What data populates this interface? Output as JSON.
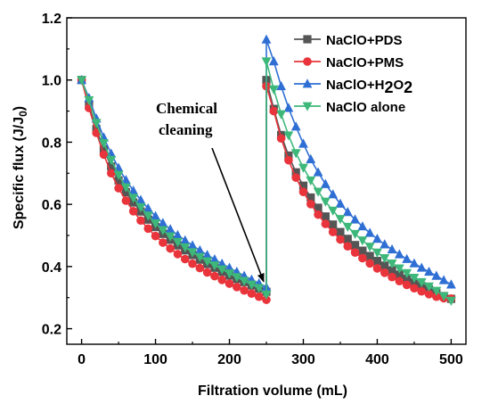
{
  "chart_data": {
    "type": "line",
    "title": "",
    "xlabel": "Filtration volume (mL)",
    "ylabel": "Specific flux (J/J",
    "ylabel_sub": "0",
    "ylabel_close": ")",
    "xlim": [
      -20,
      520
    ],
    "ylim": [
      0.15,
      1.2
    ],
    "xticks": [
      0,
      100,
      200,
      300,
      400,
      500
    ],
    "xtick_labels": [
      "0",
      "100",
      "200",
      "300",
      "400",
      "500"
    ],
    "yticks": [
      0.2,
      0.4,
      0.6,
      0.8,
      1.0,
      1.2
    ],
    "ytick_labels": [
      "0.2",
      "0.4",
      "0.6",
      "0.8",
      "1.0",
      "1.2"
    ],
    "legend_position": "top-right",
    "grid": false,
    "annotation": {
      "lines": [
        "Chemical",
        "cleaning"
      ],
      "points_to": [
        250,
        0.34
      ]
    },
    "x": [
      0,
      10,
      20,
      30,
      40,
      50,
      60,
      70,
      80,
      90,
      100,
      110,
      120,
      130,
      140,
      150,
      160,
      170,
      180,
      190,
      200,
      210,
      220,
      230,
      240,
      250,
      250,
      260,
      270,
      280,
      290,
      300,
      310,
      320,
      330,
      340,
      350,
      360,
      370,
      380,
      390,
      400,
      410,
      420,
      430,
      440,
      450,
      460,
      470,
      480,
      490,
      500
    ],
    "series": [
      {
        "name": "NaClO+PDS",
        "name_parts": [
          {
            "t": "NaClO+PDS"
          }
        ],
        "color": "#555555",
        "marker": "square",
        "values": [
          1.0,
          0.918,
          0.842,
          0.777,
          0.722,
          0.677,
          0.639,
          0.606,
          0.577,
          0.551,
          0.527,
          0.505,
          0.486,
          0.468,
          0.452,
          0.437,
          0.422,
          0.408,
          0.396,
          0.383,
          0.371,
          0.36,
          0.35,
          0.339,
          0.329,
          0.319,
          1.0,
          0.907,
          0.823,
          0.757,
          0.703,
          0.66,
          0.622,
          0.589,
          0.561,
          0.535,
          0.511,
          0.489,
          0.469,
          0.451,
          0.434,
          0.418,
          0.403,
          0.388,
          0.374,
          0.361,
          0.349,
          0.337,
          0.326,
          0.315,
          0.305,
          0.296
        ]
      },
      {
        "name": "NaClO+PMS",
        "name_parts": [
          {
            "t": "NaClO+PMS"
          }
        ],
        "color": "#e8343a",
        "marker": "circle",
        "values": [
          1.0,
          0.91,
          0.83,
          0.76,
          0.7,
          0.652,
          0.612,
          0.578,
          0.548,
          0.522,
          0.498,
          0.477,
          0.458,
          0.44,
          0.424,
          0.409,
          0.395,
          0.381,
          0.369,
          0.357,
          0.345,
          0.334,
          0.323,
          0.313,
          0.303,
          0.293,
          0.98,
          0.9,
          0.812,
          0.742,
          0.686,
          0.64,
          0.601,
          0.567,
          0.537,
          0.511,
          0.487,
          0.465,
          0.445,
          0.427,
          0.41,
          0.394,
          0.38,
          0.366,
          0.353,
          0.341,
          0.33,
          0.32,
          0.311,
          0.303,
          0.298,
          0.297
        ]
      },
      {
        "name": "NaClO+H2O2",
        "name_parts": [
          {
            "t": "NaClO+H"
          },
          {
            "t": "2",
            "sub": true
          },
          {
            "t": "O"
          },
          {
            "t": "2",
            "sub": true
          }
        ],
        "color": "#2f6fd4",
        "marker": "triangle-up",
        "values": [
          1.0,
          0.942,
          0.876,
          0.815,
          0.763,
          0.717,
          0.678,
          0.644,
          0.614,
          0.587,
          0.562,
          0.54,
          0.52,
          0.501,
          0.484,
          0.468,
          0.452,
          0.437,
          0.423,
          0.409,
          0.396,
          0.383,
          0.37,
          0.358,
          0.346,
          0.333,
          1.13,
          1.06,
          0.98,
          0.91,
          0.85,
          0.795,
          0.745,
          0.703,
          0.665,
          0.632,
          0.602,
          0.575,
          0.551,
          0.529,
          0.508,
          0.489,
          0.471,
          0.455,
          0.439,
          0.424,
          0.41,
          0.396,
          0.383,
          0.37,
          0.356,
          0.342
        ]
      },
      {
        "name": "NaClO  alone",
        "name_parts": [
          {
            "t": "NaClO  alone"
          }
        ],
        "color": "#3db87a",
        "marker": "triangle-down",
        "values": [
          1.0,
          0.935,
          0.862,
          0.797,
          0.743,
          0.695,
          0.655,
          0.621,
          0.591,
          0.564,
          0.539,
          0.517,
          0.497,
          0.479,
          0.462,
          0.446,
          0.431,
          0.417,
          0.404,
          0.391,
          0.378,
          0.366,
          0.354,
          0.342,
          0.331,
          0.31,
          1.06,
          0.97,
          0.89,
          0.822,
          0.765,
          0.718,
          0.677,
          0.641,
          0.609,
          0.58,
          0.553,
          0.528,
          0.505,
          0.484,
          0.464,
          0.445,
          0.427,
          0.41,
          0.394,
          0.379,
          0.364,
          0.35,
          0.336,
          0.322,
          0.305,
          0.29
        ]
      }
    ]
  }
}
